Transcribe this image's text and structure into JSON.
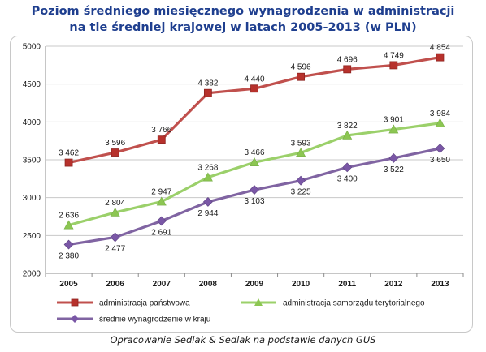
{
  "title_line1": "Poziom średniego miesięcznego wynagrodzenia w administracji",
  "title_line2": "na tle średniej krajowej w latach 2005-2013 (w PLN)",
  "source": "Opracowanie Sedlak & Sedlak na podstawie danych GUS",
  "chart_data": {
    "type": "line",
    "x": [
      "2005",
      "2006",
      "2007",
      "2008",
      "2009",
      "2010",
      "2011",
      "2012",
      "2013"
    ],
    "ylim": [
      2000,
      5000
    ],
    "yticks": [
      "2000",
      "2500",
      "3000",
      "3500",
      "4000",
      "4500",
      "5000"
    ],
    "grid": true,
    "legend_position": "bottom",
    "series": [
      {
        "name": "administracja państwowa",
        "color": "#c0504d",
        "marker": "square",
        "values": [
          3462,
          3596,
          3766,
          4382,
          4440,
          4596,
          4696,
          4749,
          4854
        ],
        "labels": [
          "3 462",
          "3 596",
          "3 766",
          "4 382",
          "4 440",
          "4 596",
          "4 696",
          "4 749",
          "4 854"
        ]
      },
      {
        "name": "administracja samorządu terytorialnego",
        "color": "#9bd06a",
        "marker": "triangle",
        "values": [
          2636,
          2804,
          2947,
          3268,
          3466,
          3593,
          3822,
          3901,
          3984
        ],
        "labels": [
          "2 636",
          "2 804",
          "2 947",
          "3 268",
          "3 466",
          "3 593",
          "3 822",
          "3 901",
          "3 984"
        ]
      },
      {
        "name": "średnie wynagrodzenie w kraju",
        "color": "#8064a2",
        "marker": "diamond",
        "values": [
          2380,
          2477,
          2691,
          2944,
          3103,
          3225,
          3400,
          3522,
          3650
        ],
        "labels": [
          "2 380",
          "2 477",
          "2 691",
          "2 944",
          "3 103",
          "3 225",
          "3 400",
          "3 522",
          "3 650"
        ]
      }
    ]
  }
}
